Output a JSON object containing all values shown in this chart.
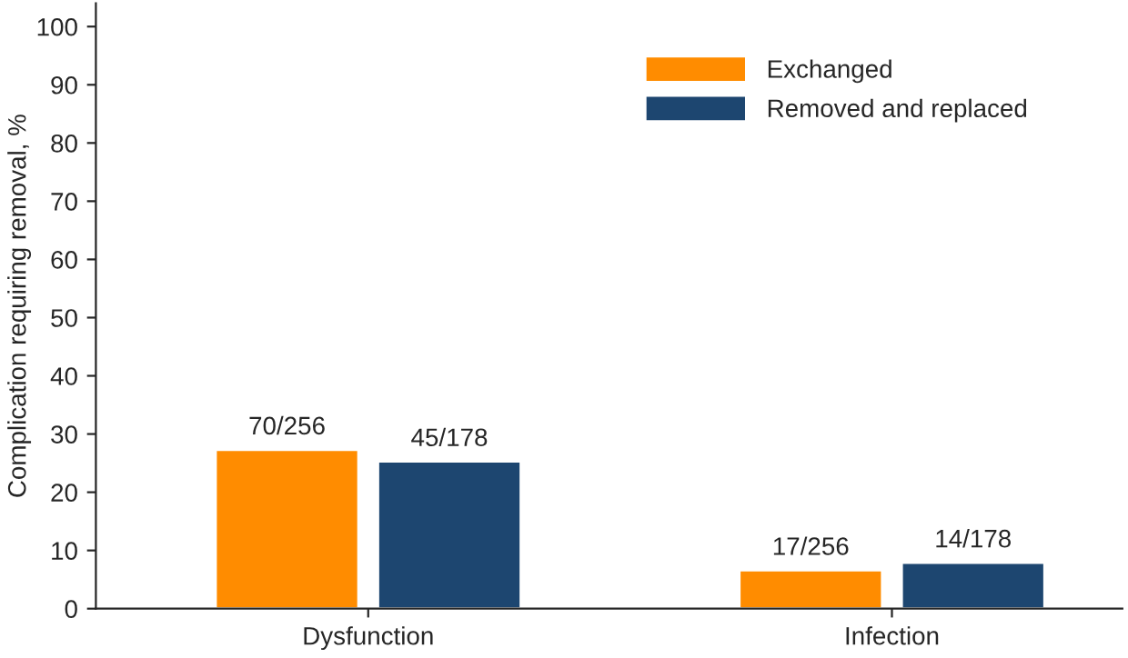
{
  "chart_data": {
    "type": "bar",
    "ylabel": "Complication requiring removal, %",
    "categories": [
      "Dysfunction",
      "Infection"
    ],
    "series": [
      {
        "name": "Exchanged",
        "color": "#ff8c00",
        "values": [
          27.3,
          6.6
        ],
        "value_labels": [
          "70/256",
          "17/256"
        ]
      },
      {
        "name": "Removed and replaced",
        "color": "#1d4670",
        "values": [
          25.3,
          7.9
        ],
        "value_labels": [
          "45/178",
          "14/178"
        ]
      }
    ],
    "ylim": [
      0,
      104
    ],
    "yticks": [
      0,
      10,
      20,
      30,
      40,
      50,
      60,
      70,
      80,
      90,
      100
    ],
    "grid": false,
    "legend": "top right"
  }
}
